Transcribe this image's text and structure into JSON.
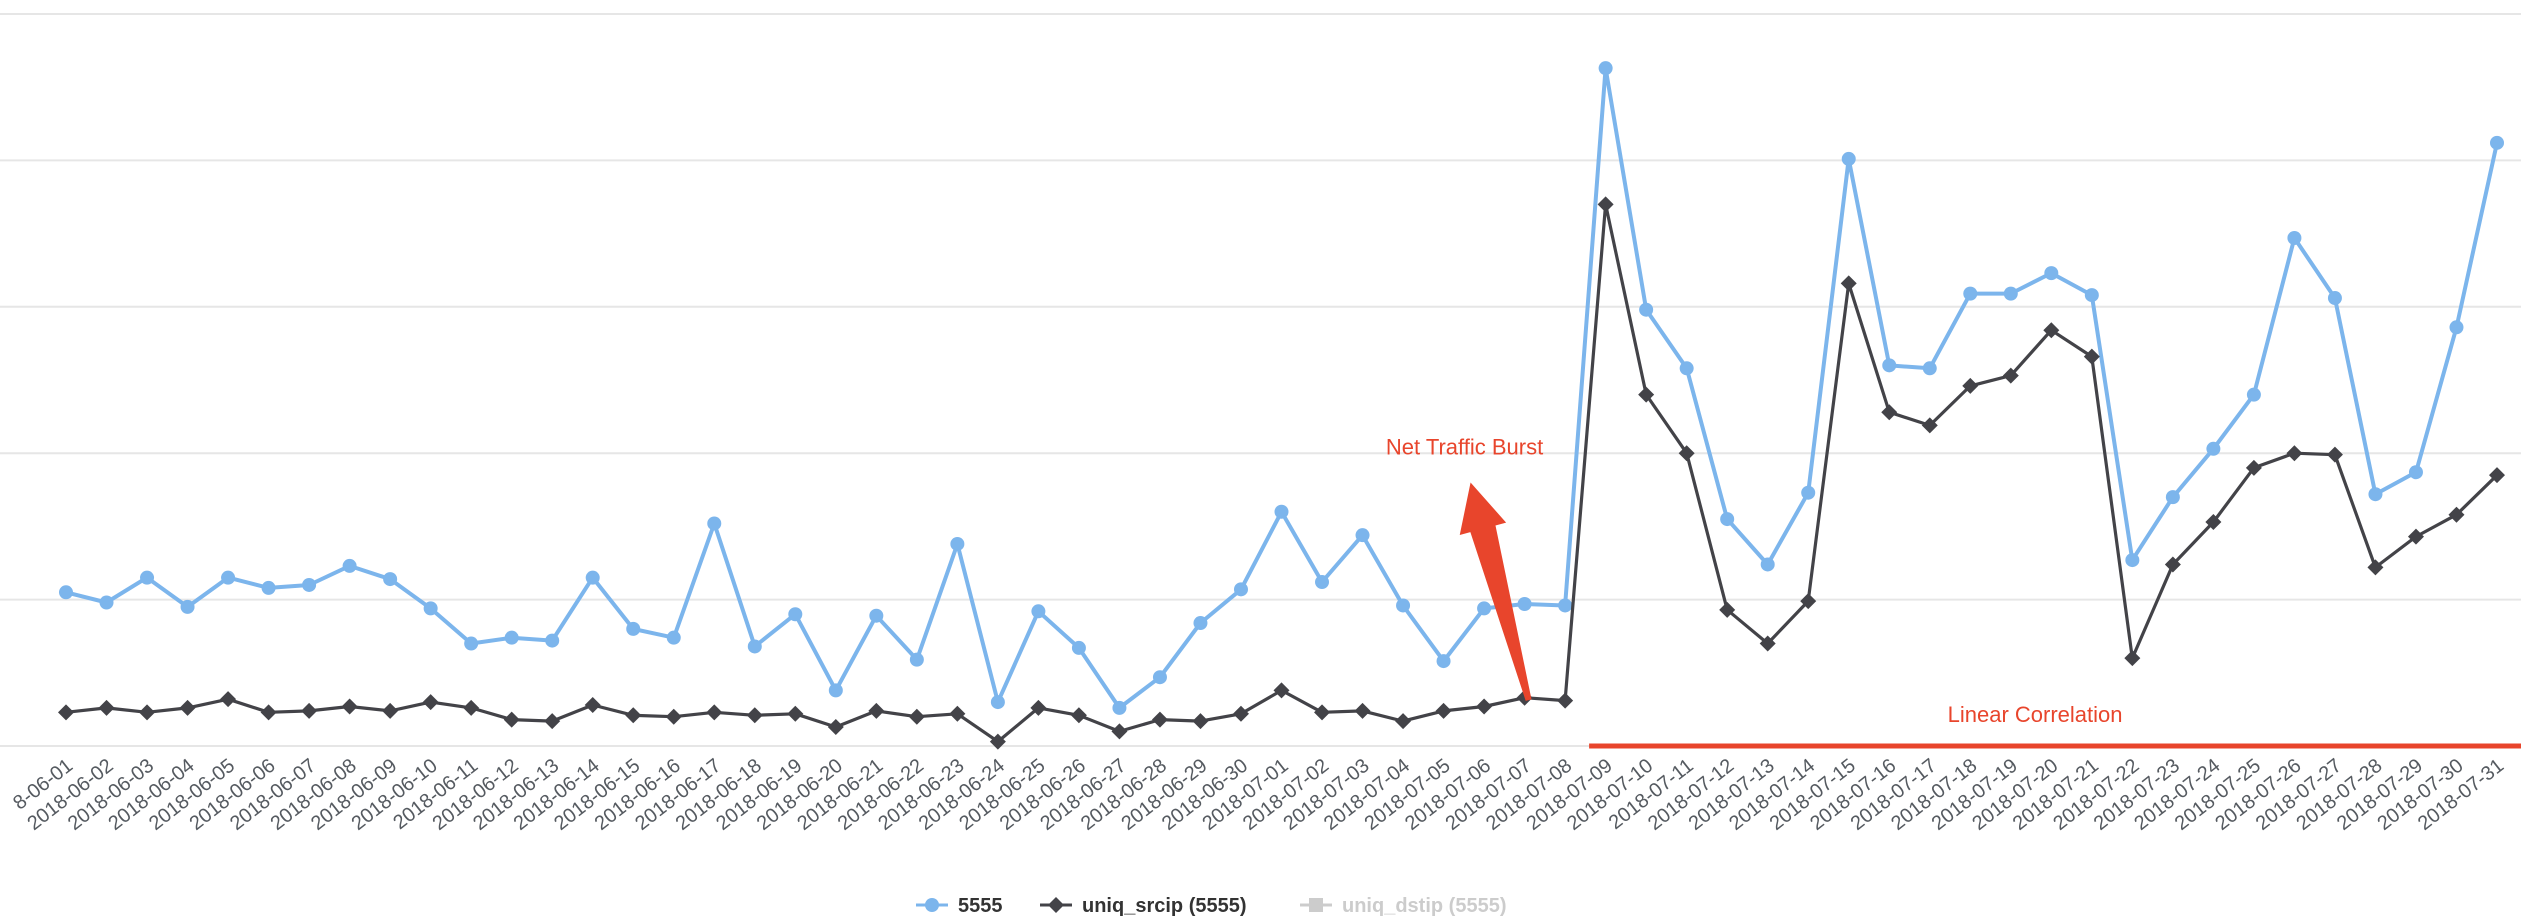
{
  "chart_data": {
    "type": "line",
    "title": "",
    "xlabel": "",
    "ylabel": "",
    "ylim": [
      0,
      5
    ],
    "y_tick_values": [
      0,
      1,
      2,
      3,
      4,
      5
    ],
    "y_tick_labels": [
      "",
      "",
      "",
      "",
      "",
      ""
    ],
    "grid": "horizontal",
    "legend_placement": "bottom-center",
    "x_tick_labels": [
      "8-06-01",
      "2018-06-02",
      "2018-06-03",
      "2018-06-04",
      "2018-06-05",
      "2018-06-06",
      "2018-06-07",
      "2018-06-08",
      "2018-06-09",
      "2018-06-10",
      "2018-06-11",
      "2018-06-12",
      "2018-06-13",
      "2018-06-14",
      "2018-06-15",
      "2018-06-16",
      "2018-06-17",
      "2018-06-18",
      "2018-06-19",
      "2018-06-20",
      "2018-06-21",
      "2018-06-22",
      "2018-06-23",
      "2018-06-24",
      "2018-06-25",
      "2018-06-26",
      "2018-06-27",
      "2018-06-28",
      "2018-06-29",
      "2018-06-30",
      "2018-07-01",
      "2018-07-02",
      "2018-07-03",
      "2018-07-04",
      "2018-07-05",
      "2018-07-06",
      "2018-07-07",
      "2018-07-08",
      "2018-07-09",
      "2018-07-10",
      "2018-07-11",
      "2018-07-12",
      "2018-07-13",
      "2018-07-14",
      "2018-07-15",
      "2018-07-16",
      "2018-07-17",
      "2018-07-18",
      "2018-07-19",
      "2018-07-20",
      "2018-07-21",
      "2018-07-22",
      "2018-07-23",
      "2018-07-24",
      "2018-07-25",
      "2018-07-26",
      "2018-07-27",
      "2018-07-28",
      "2018-07-29",
      "2018-07-30",
      "2018-07-31"
    ],
    "series": [
      {
        "name": "5555",
        "color": "#7cb5ec",
        "marker": "circle",
        "values": [
          1.05,
          0.98,
          1.15,
          0.95,
          1.15,
          1.08,
          1.1,
          1.23,
          1.14,
          0.94,
          0.7,
          0.74,
          0.72,
          1.15,
          0.8,
          0.74,
          1.52,
          0.68,
          0.9,
          0.38,
          0.89,
          0.59,
          1.38,
          0.3,
          0.92,
          0.67,
          0.26,
          0.47,
          0.84,
          1.07,
          1.6,
          1.12,
          1.44,
          0.96,
          0.58,
          0.94,
          0.97,
          0.96,
          4.63,
          2.98,
          2.58,
          1.55,
          1.24,
          1.73,
          4.01,
          2.6,
          2.58,
          3.09,
          3.09,
          3.23,
          3.08,
          1.27,
          1.7,
          2.03,
          2.4,
          3.47,
          3.06,
          1.72,
          1.87,
          2.86,
          4.12
        ]
      },
      {
        "name": "uniq_srcip (5555)",
        "color": "#434348",
        "marker": "diamond",
        "values": [
          0.23,
          0.26,
          0.23,
          0.26,
          0.32,
          0.23,
          0.24,
          0.27,
          0.24,
          0.3,
          0.26,
          0.18,
          0.17,
          0.28,
          0.21,
          0.2,
          0.23,
          0.21,
          0.22,
          0.13,
          0.24,
          0.2,
          0.22,
          0.03,
          0.26,
          0.21,
          0.1,
          0.18,
          0.17,
          0.22,
          0.38,
          0.23,
          0.24,
          0.17,
          0.24,
          0.27,
          0.33,
          0.31,
          3.7,
          2.4,
          2.0,
          0.93,
          0.7,
          0.99,
          3.16,
          2.28,
          2.19,
          2.46,
          2.53,
          2.84,
          2.66,
          0.6,
          1.24,
          1.53,
          1.9,
          2.0,
          1.99,
          1.22,
          1.43,
          1.58,
          1.85
        ]
      },
      {
        "name": "uniq_dstip (5555)",
        "color": "#cccccc",
        "marker": "square",
        "hidden": true,
        "values": []
      }
    ],
    "annotations": [
      {
        "text": "Net Traffic Burst",
        "type": "arrow",
        "from_x": "2018-07-07",
        "from_y": 0.45,
        "to_x": "2018-07-05",
        "to_y": 1.65
      },
      {
        "text": "Linear Correlation",
        "type": "hline",
        "x_start": "2018-07-08",
        "x_end": "2018-07-31",
        "y": 0.0
      }
    ]
  }
}
